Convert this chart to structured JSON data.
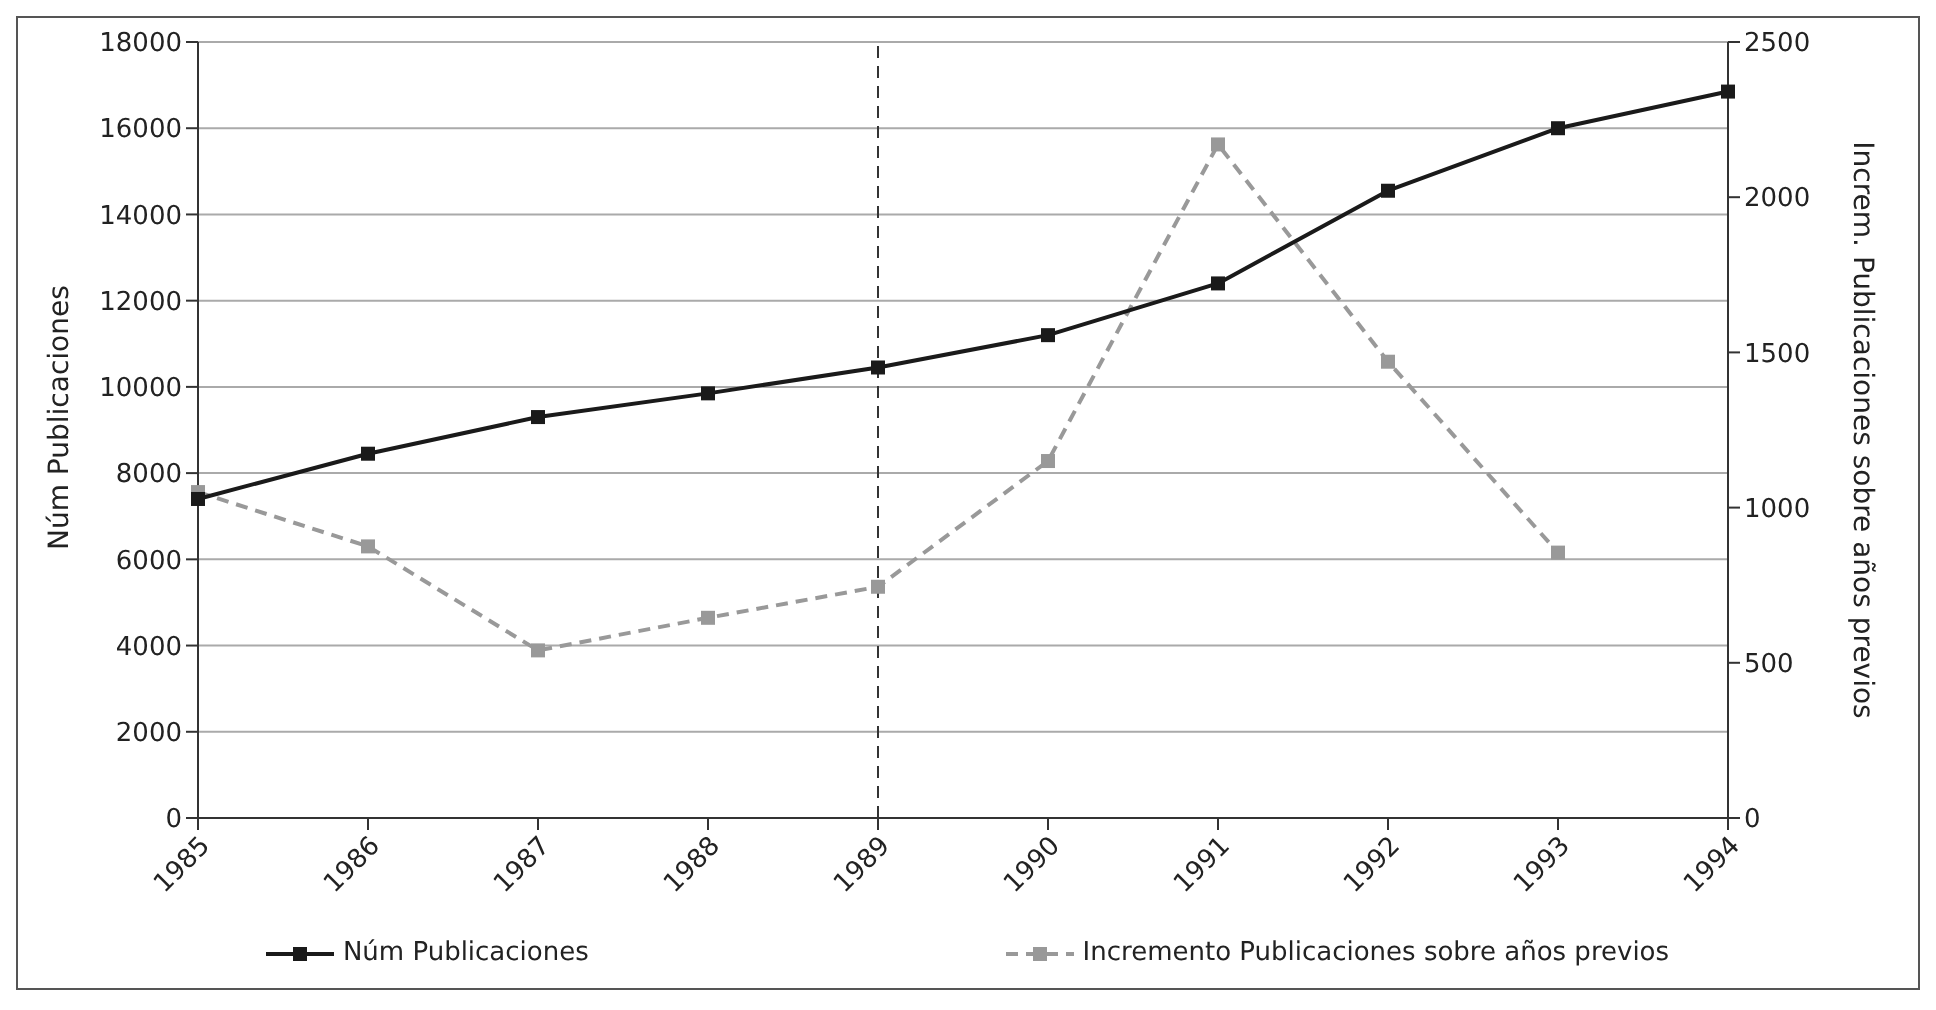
{
  "chart_data": {
    "type": "line",
    "categories": [
      "1985",
      "1986",
      "1987",
      "1988",
      "1989",
      "1990",
      "1991",
      "1992",
      "1993",
      "1994"
    ],
    "series": [
      {
        "name": "Núm Publicaciones",
        "color": "#1a1a1a",
        "values": [
          7400,
          8450,
          9300,
          9850,
          10450,
          11200,
          12400,
          14550,
          16000,
          16850
        ],
        "line_style": "solid"
      },
      {
        "name": "Incremento Publicaciones sobre años previos",
        "color": "#999999",
        "axis": "y2",
        "values": [
          1050,
          875,
          540,
          645,
          745,
          1150,
          2170,
          1470,
          855,
          null
        ],
        "line_style": "dashed"
      }
    ],
    "ylabel": "Núm Publicaciones",
    "y2label": "Increm. Publicaciones sobre años previos",
    "ylim": [
      0,
      18000
    ],
    "yticks": [
      0,
      2000,
      4000,
      6000,
      8000,
      10000,
      12000,
      14000,
      16000,
      18000
    ],
    "y2lim": [
      0,
      2500
    ],
    "y2ticks": [
      0,
      500,
      1000,
      1500,
      2000,
      2500
    ],
    "ref_lines": [
      {
        "axis": "x",
        "value": "1989",
        "color": "#333333",
        "line_style": "dashed"
      }
    ],
    "grid": "y",
    "legend": "bottom",
    "marker": "square"
  }
}
